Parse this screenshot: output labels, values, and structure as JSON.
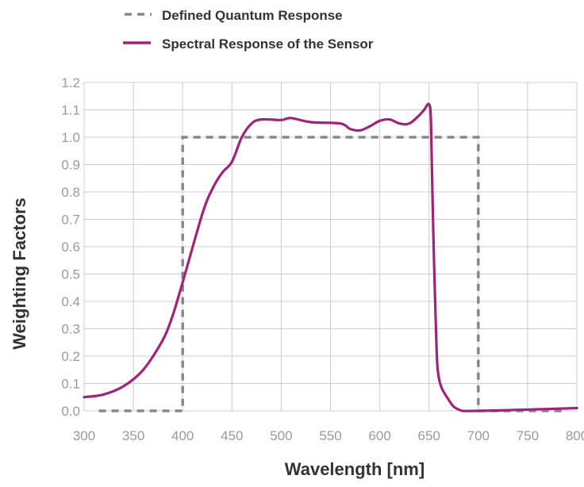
{
  "chart_data": {
    "type": "line",
    "xlabel": "Wavelength [nm]",
    "ylabel": "Weighting Factors",
    "xlim": [
      300,
      800
    ],
    "ylim": [
      0.0,
      1.2
    ],
    "x_ticks": [
      "300",
      "350",
      "400",
      "450",
      "500",
      "550",
      "600",
      "650",
      "700",
      "750",
      "800"
    ],
    "y_ticks": [
      "0.0",
      "0.1",
      "0.2",
      "0.3",
      "0.4",
      "0.5",
      "0.6",
      "0.7",
      "0.8",
      "0.9",
      "1.0",
      "1.1",
      "1.2"
    ],
    "grid": true,
    "legend_position": "top-left",
    "colors": {
      "quantum": "#888888",
      "sensor": "#a0237a",
      "grid": "#cccccc"
    },
    "series": [
      {
        "name": "Defined Quantum Response",
        "style": "dashed",
        "x": [
          315,
          400,
          400,
          700,
          700,
          790
        ],
        "y": [
          0.0,
          0.0,
          1.0,
          1.0,
          0.0,
          0.0
        ]
      },
      {
        "name": "Spectral Response of the Sensor",
        "style": "solid",
        "x": [
          300,
          320,
          340,
          360,
          380,
          390,
          400,
          420,
          430,
          440,
          450,
          460,
          470,
          480,
          500,
          510,
          530,
          560,
          570,
          580,
          590,
          600,
          610,
          620,
          630,
          640,
          645,
          650,
          652,
          654,
          657,
          660,
          670,
          680,
          700,
          800
        ],
        "y": [
          0.05,
          0.06,
          0.09,
          0.15,
          0.26,
          0.35,
          0.47,
          0.72,
          0.81,
          0.87,
          0.91,
          1.0,
          1.05,
          1.065,
          1.063,
          1.07,
          1.055,
          1.05,
          1.03,
          1.025,
          1.04,
          1.06,
          1.065,
          1.05,
          1.05,
          1.08,
          1.1,
          1.12,
          1.05,
          0.7,
          0.3,
          0.12,
          0.04,
          0.005,
          0.0,
          0.01
        ]
      }
    ]
  }
}
